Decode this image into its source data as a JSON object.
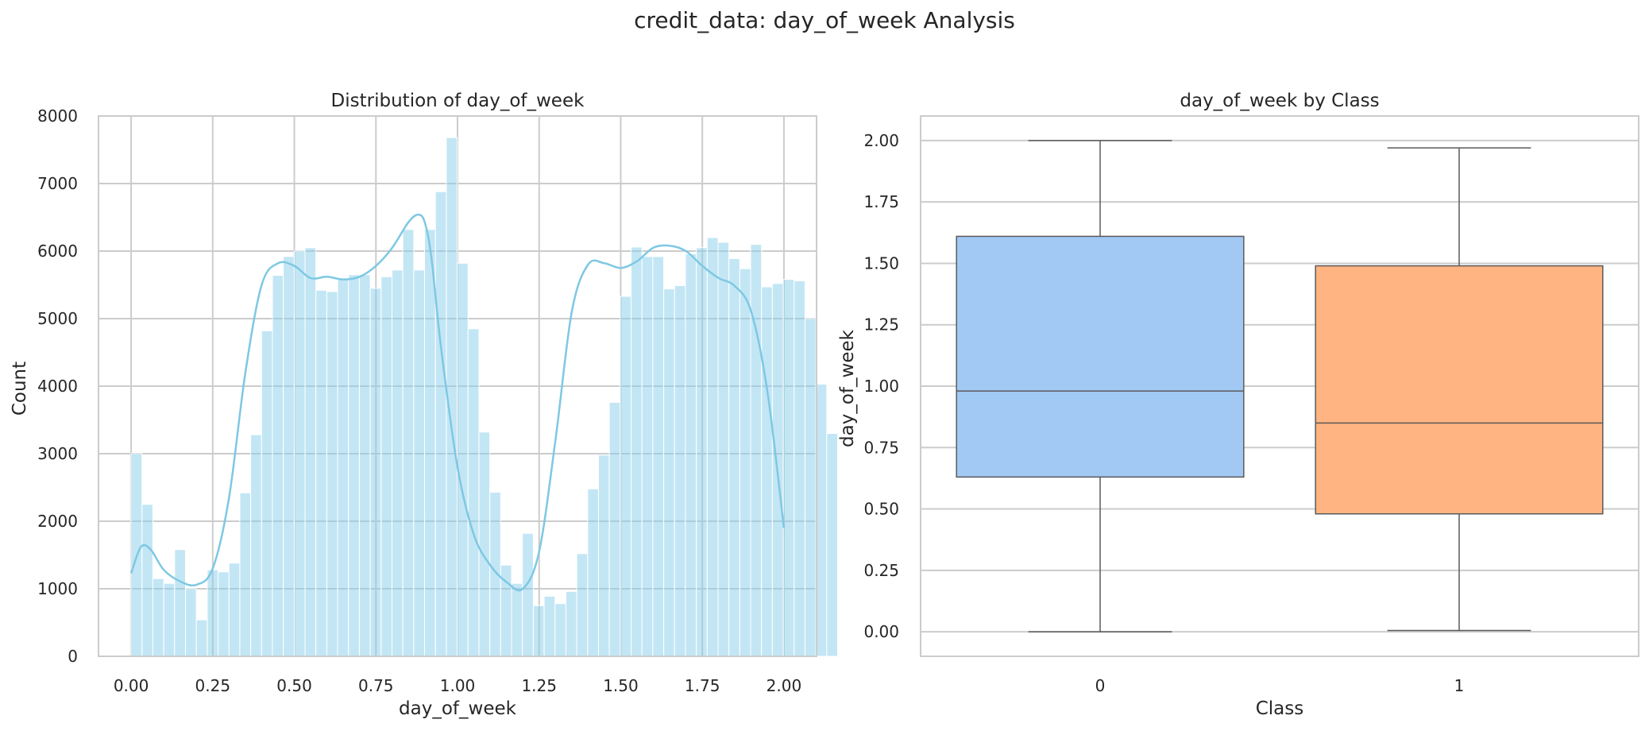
{
  "figure": {
    "title": "credit_data: day_of_week Analysis"
  },
  "chart_data": [
    {
      "type": "histogram",
      "title": "Distribution of day_of_week",
      "xlabel": "day_of_week",
      "ylabel": "Count",
      "xlim": [
        -0.1,
        2.1
      ],
      "ylim": [
        0,
        8000
      ],
      "xticks": [
        "0.00",
        "0.25",
        "0.50",
        "0.75",
        "1.00",
        "1.25",
        "1.50",
        "1.75",
        "2.00"
      ],
      "yticks": [
        "0",
        "1000",
        "2000",
        "3000",
        "4000",
        "5000",
        "6000",
        "7000",
        "8000"
      ],
      "grid": true,
      "bar_color": "#87ceeb",
      "kde_color": "#7ec8e3",
      "bin_start": 0.0,
      "bin_width": 0.0333,
      "counts": [
        3000,
        2250,
        1150,
        1080,
        1580,
        1000,
        540,
        1280,
        1250,
        1380,
        2420,
        3280,
        4820,
        5640,
        5920,
        6000,
        6050,
        5420,
        5400,
        5600,
        5650,
        5650,
        5450,
        5620,
        5720,
        6320,
        5720,
        6320,
        6880,
        7680,
        5820,
        4850,
        3320,
        2430,
        1350,
        1080,
        1820,
        750,
        890,
        780,
        960,
        1520,
        2480,
        2980,
        3760,
        5330,
        6060,
        5920,
        5920,
        5440,
        5490,
        5960,
        6050,
        6200,
        6130,
        5890,
        5740,
        6100,
        5470,
        5520,
        5580,
        5560,
        5000,
        4030,
        3300
      ],
      "kde": {
        "x": [
          0.0,
          0.03,
          0.06,
          0.1,
          0.15,
          0.2,
          0.25,
          0.3,
          0.35,
          0.4,
          0.45,
          0.5,
          0.55,
          0.6,
          0.65,
          0.7,
          0.75,
          0.8,
          0.85,
          0.88,
          0.9,
          0.92,
          0.95,
          1.0,
          1.05,
          1.1,
          1.15,
          1.2,
          1.25,
          1.3,
          1.35,
          1.4,
          1.45,
          1.5,
          1.55,
          1.6,
          1.65,
          1.7,
          1.75,
          1.8,
          1.85,
          1.9,
          1.95,
          2.0
        ],
        "y": [
          1230,
          1620,
          1580,
          1280,
          1110,
          1060,
          1300,
          2350,
          4200,
          5500,
          5820,
          5780,
          5600,
          5620,
          5580,
          5620,
          5780,
          6050,
          6430,
          6540,
          6420,
          5900,
          4550,
          2800,
          1800,
          1350,
          1100,
          1000,
          1550,
          3200,
          5100,
          5800,
          5820,
          5750,
          5850,
          6050,
          6080,
          6000,
          5780,
          5600,
          5480,
          5100,
          3900,
          1900
        ]
      }
    },
    {
      "type": "box",
      "title": "day_of_week by Class",
      "xlabel": "Class",
      "ylabel": "day_of_week",
      "categories": [
        "0",
        "1"
      ],
      "ylim": [
        -0.1,
        2.1
      ],
      "yticks": [
        "0.00",
        "0.25",
        "0.50",
        "0.75",
        "1.00",
        "1.25",
        "1.50",
        "1.75",
        "2.00"
      ],
      "grid": true,
      "boxes": [
        {
          "category": "0",
          "whisker_low": 0.0,
          "q1": 0.63,
          "median": 0.98,
          "q3": 1.61,
          "whisker_high": 2.0,
          "color": "#a1c9f4"
        },
        {
          "category": "1",
          "whisker_low": 0.005,
          "q1": 0.48,
          "median": 0.85,
          "q3": 1.49,
          "whisker_high": 1.97,
          "color": "#ffb482"
        }
      ]
    }
  ]
}
